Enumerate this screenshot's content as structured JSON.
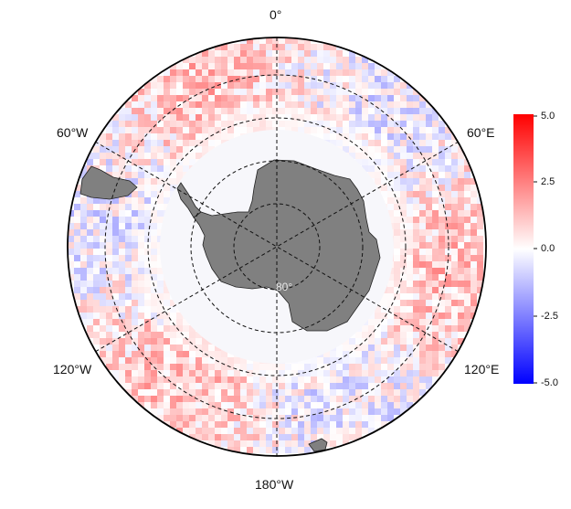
{
  "map": {
    "projection": "south-polar-stereographic",
    "land_color": "#808080",
    "ocean_background": "#ffffff",
    "graticule_style": "dashed",
    "longitude_labels": {
      "top": "0°",
      "upper_left": "60°W",
      "upper_right": "60°E",
      "lower_left": "120°W",
      "lower_right": "120°E",
      "bottom": "180°W"
    },
    "latitude_label": "80°"
  },
  "colorbar": {
    "ticks": [
      "5.0",
      "2.5",
      "0.0",
      "-2.5",
      "-5.0"
    ],
    "range": [
      -5.0,
      5.0
    ],
    "color_max": "#ff0000",
    "color_mid": "#ffffff",
    "color_min": "#0000ff"
  }
}
